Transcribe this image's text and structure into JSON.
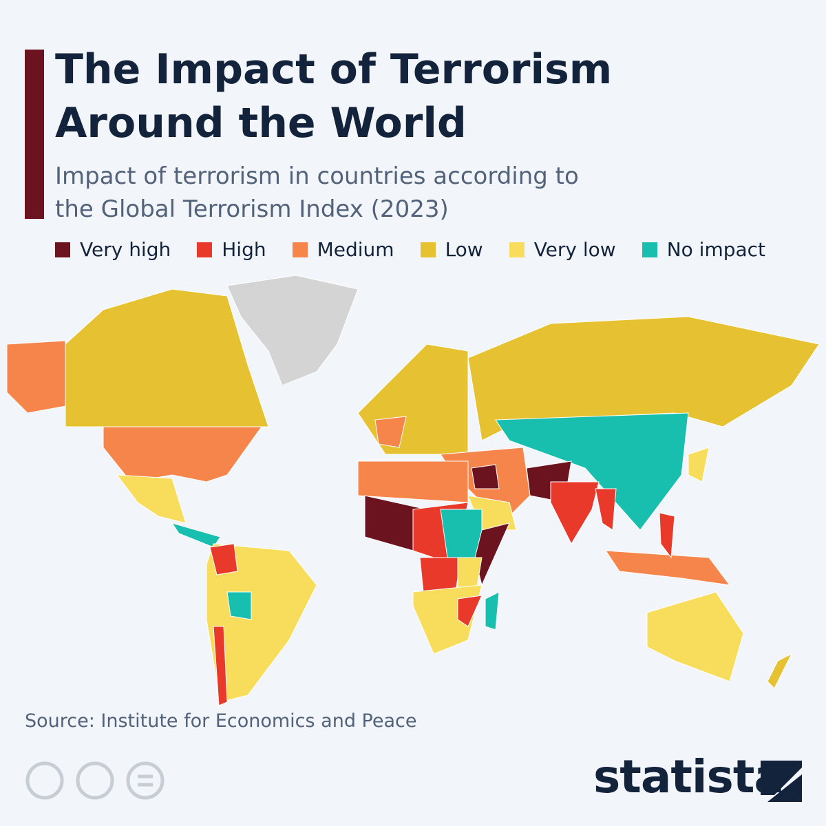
{
  "header": {
    "title": "The Impact of Terrorism Around the World",
    "subtitle": "Impact of terrorism in countries according to the Global Terrorism Index (2023)"
  },
  "legend": [
    {
      "label": "Very high",
      "color": "#6b1420"
    },
    {
      "label": "High",
      "color": "#e8392b"
    },
    {
      "label": "Medium",
      "color": "#f5854a"
    },
    {
      "label": "Low",
      "color": "#e6c232"
    },
    {
      "label": "Very low",
      "color": "#f8dd5c"
    },
    {
      "label": "No impact",
      "color": "#18bfae"
    }
  ],
  "footer": {
    "source": "Source: Institute for Economics and Peace",
    "brand": "statista"
  }
}
